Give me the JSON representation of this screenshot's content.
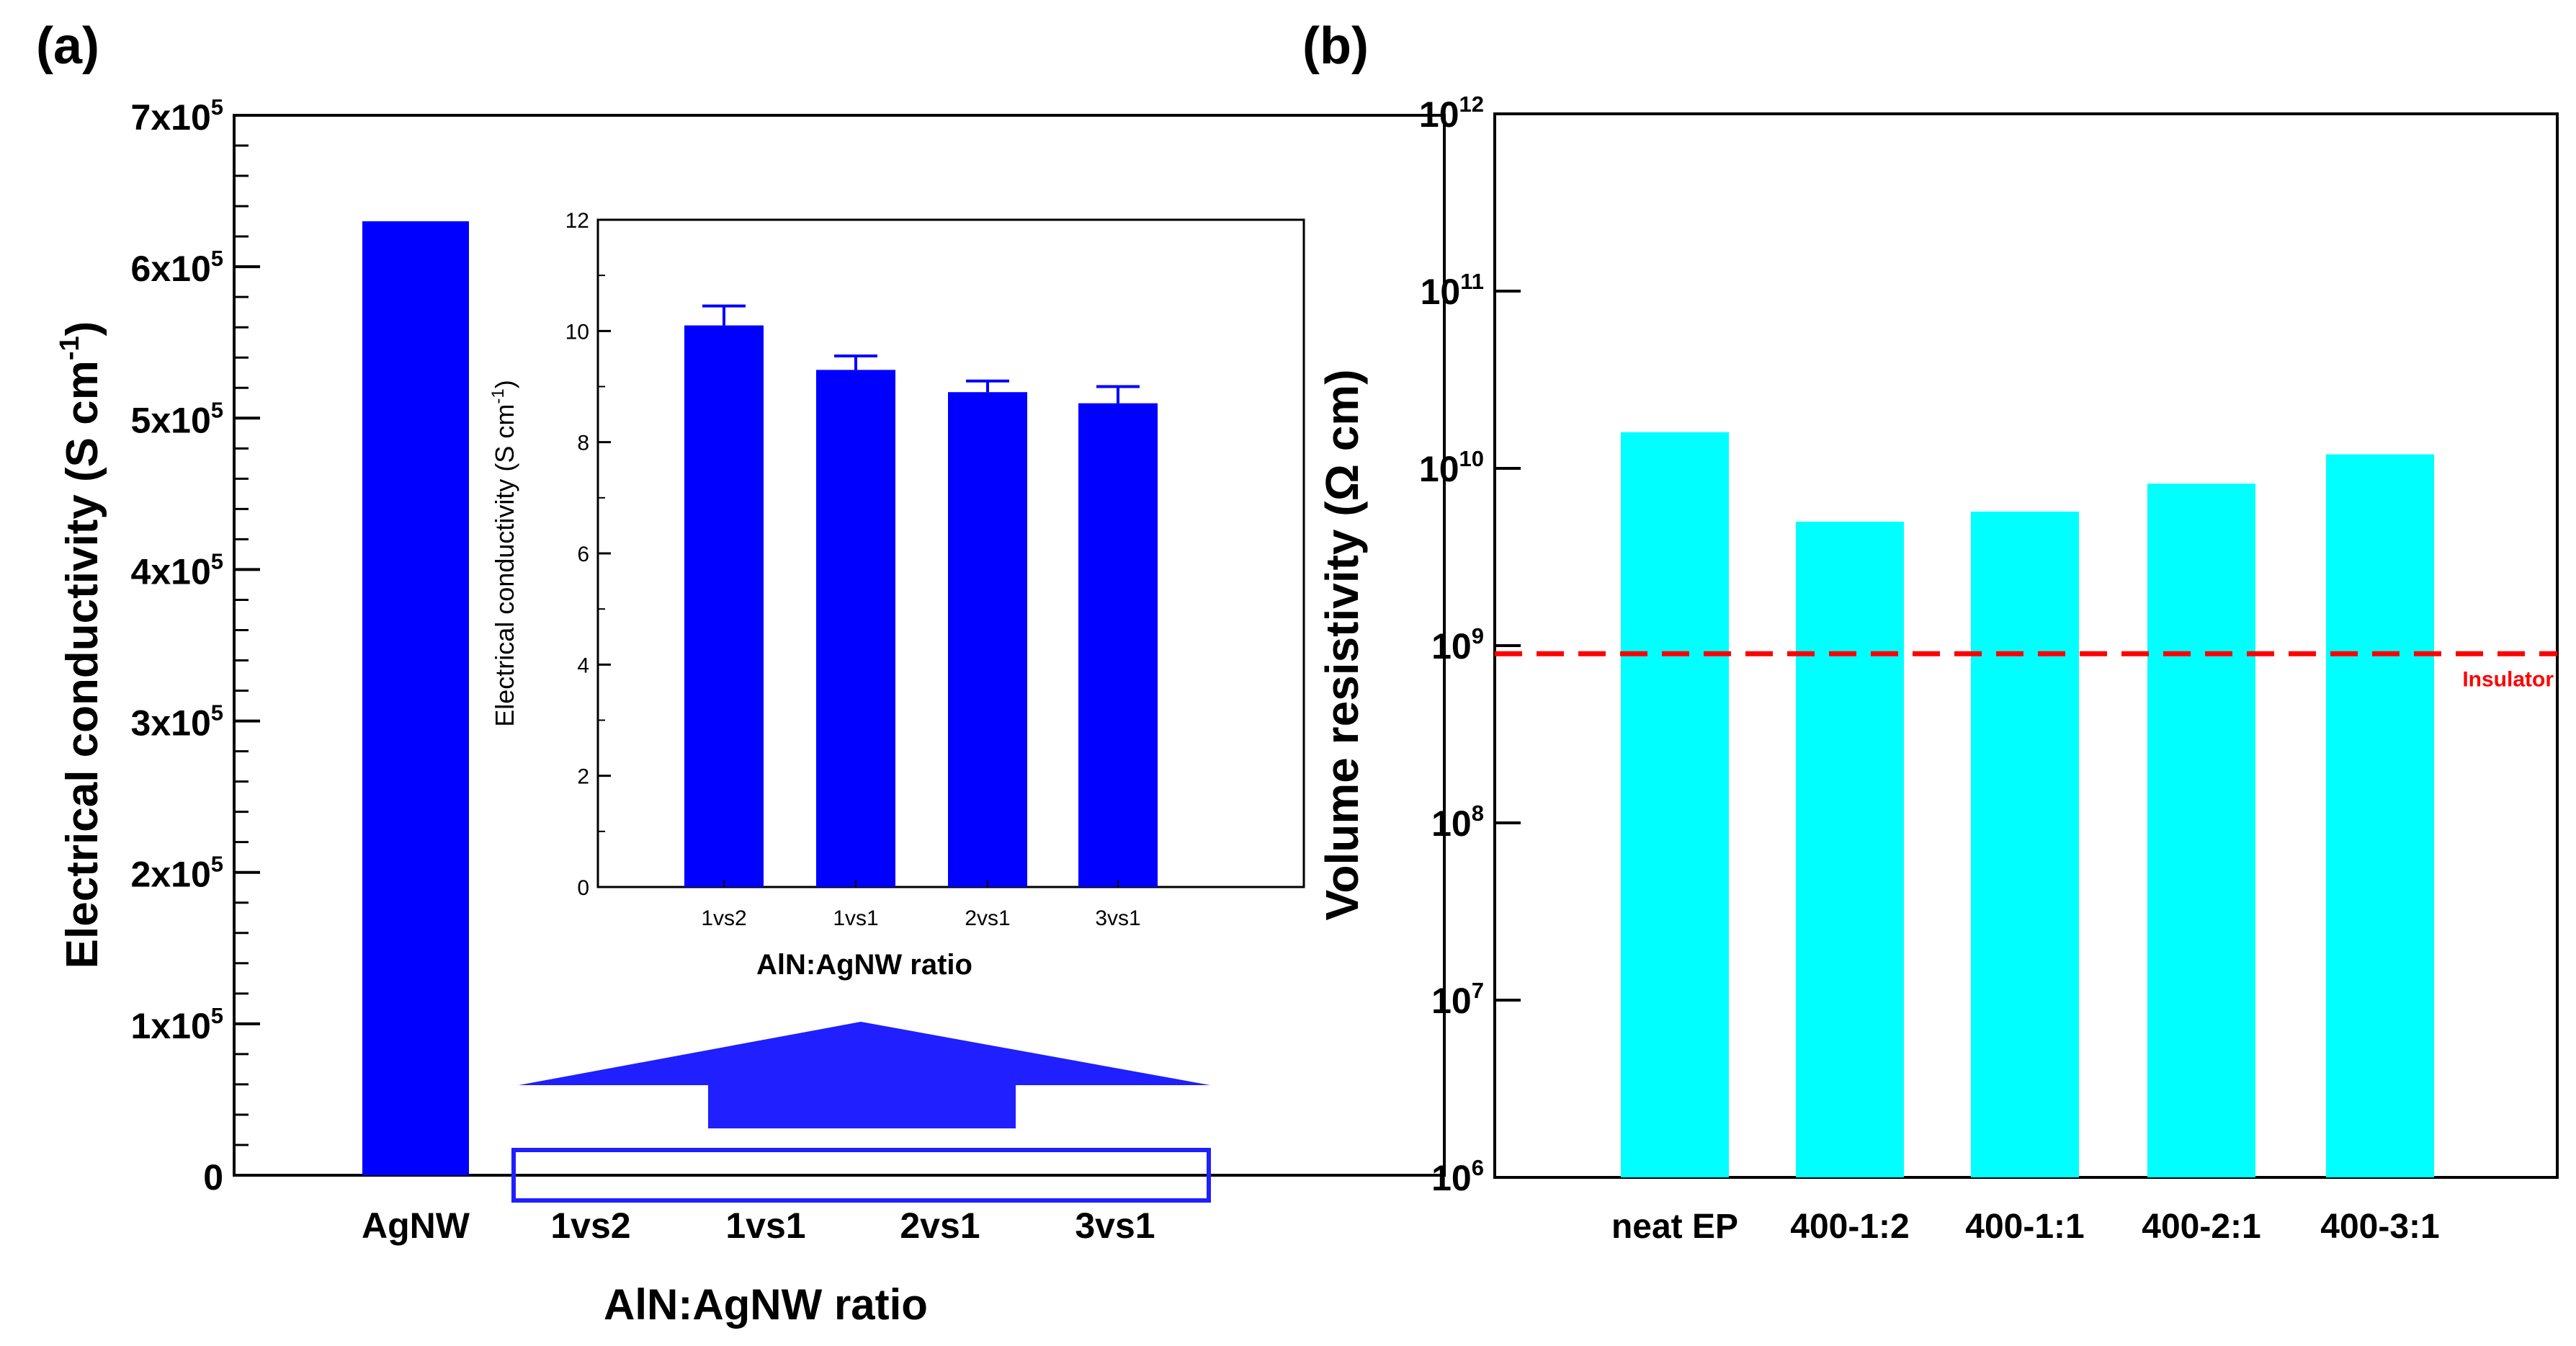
{
  "panels": {
    "a_label": "(a)",
    "b_label": "(b)"
  },
  "chart_data": [
    {
      "id": "a-main",
      "type": "bar",
      "categories": [
        "AgNW",
        "1vs2",
        "1vs1",
        "2vs1",
        "3vs1"
      ],
      "values": [
        630000,
        10.1,
        9.3,
        8.9,
        8.7
      ],
      "ylabel": "Electrical conductivity (S cm",
      "ylabel_sup": "-1",
      "ylabel_close": ")",
      "xlabel": "AlN:AgNW ratio",
      "ylim": [
        0,
        700000
      ],
      "yticks": [
        {
          "value": 0,
          "base": "0",
          "exp": ""
        },
        {
          "value": 100000,
          "base": "1x10",
          "exp": "5"
        },
        {
          "value": 200000,
          "base": "2x10",
          "exp": "5"
        },
        {
          "value": 300000,
          "base": "3x10",
          "exp": "5"
        },
        {
          "value": 400000,
          "base": "4x10",
          "exp": "5"
        },
        {
          "value": 500000,
          "base": "5x10",
          "exp": "5"
        },
        {
          "value": 600000,
          "base": "6x10",
          "exp": "5"
        },
        {
          "value": 700000,
          "base": "7x10",
          "exp": "5"
        }
      ],
      "color": "#0000ff",
      "highlight_color": "#1f1fff"
    },
    {
      "id": "a-inset",
      "type": "bar",
      "categories": [
        "1vs2",
        "1vs1",
        "2vs1",
        "3vs1"
      ],
      "values": [
        10.1,
        9.3,
        8.9,
        8.7
      ],
      "errors": [
        0.35,
        0.25,
        0.2,
        0.3
      ],
      "ylabel": "Electrical conductivity (S cm",
      "ylabel_sup": "-1",
      "ylabel_close": ")",
      "xlabel": "AlN:AgNW ratio",
      "ylim": [
        0,
        12
      ],
      "yticks": [
        0,
        2,
        4,
        6,
        8,
        10,
        12
      ],
      "color": "#0000ff"
    },
    {
      "id": "b-main",
      "type": "bar",
      "categories": [
        "neat EP",
        "400-1:2",
        "400-1:1",
        "400-2:1",
        "400-3:1"
      ],
      "values": [
        16000000000,
        5000000000,
        5700000000,
        8200000000,
        12000000000
      ],
      "ylabel": "Volume resistivity (Ω cm)",
      "ylim": [
        1000000,
        1000000000000
      ],
      "yscale": "log",
      "yticks": [
        {
          "value": 1000000,
          "base": "10",
          "exp": "6"
        },
        {
          "value": 10000000,
          "base": "10",
          "exp": "7"
        },
        {
          "value": 100000000,
          "base": "10",
          "exp": "8"
        },
        {
          "value": 1000000000,
          "base": "10",
          "exp": "9"
        },
        {
          "value": 10000000000,
          "base": "10",
          "exp": "10"
        },
        {
          "value": 100000000000,
          "base": "10",
          "exp": "11"
        },
        {
          "value": 1000000000000,
          "base": "10",
          "exp": "12"
        }
      ],
      "threshold": {
        "value": 900000000,
        "label": "Insulator",
        "color": "#ff0000"
      },
      "color": "#00ffff"
    }
  ]
}
